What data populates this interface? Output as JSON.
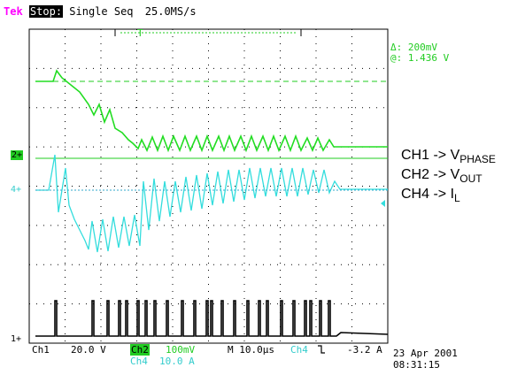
{
  "header": {
    "brand": "Tek",
    "state": "Stop:",
    "mode": "Single Seq",
    "rate": "25.0MS/s",
    "trigger_marker": "T"
  },
  "cursor_readout": {
    "delta": "Δ: 200mV",
    "at": "@: 1.436 V"
  },
  "channel_markers": {
    "ch2": "2+",
    "ch4": "4+",
    "ch1": "1+"
  },
  "legend": [
    {
      "prefix": "CH1 -> V",
      "sub": "PHASE"
    },
    {
      "prefix": "CH2 -> V",
      "sub": "OUT"
    },
    {
      "prefix": "CH4 -> I",
      "sub": "L"
    }
  ],
  "bottom": {
    "ch1_label": "Ch1",
    "ch1_scale": "20.0 V",
    "ch2_label": "Ch2",
    "ch2_scale": "100mV",
    "ch4_label": "Ch4",
    "ch4_scale": "10.0 A",
    "timebase": "M 10.0µs",
    "trig_src": "Ch4",
    "trig_slope": "⌐",
    "trig_level": "-3.2 A",
    "date": "23 Apr 2001",
    "time": "08:31:15"
  },
  "colors": {
    "magenta": "#ff00ff",
    "green": "#22dd22",
    "cyan": "#33dddd",
    "grid": "#000000"
  }
}
